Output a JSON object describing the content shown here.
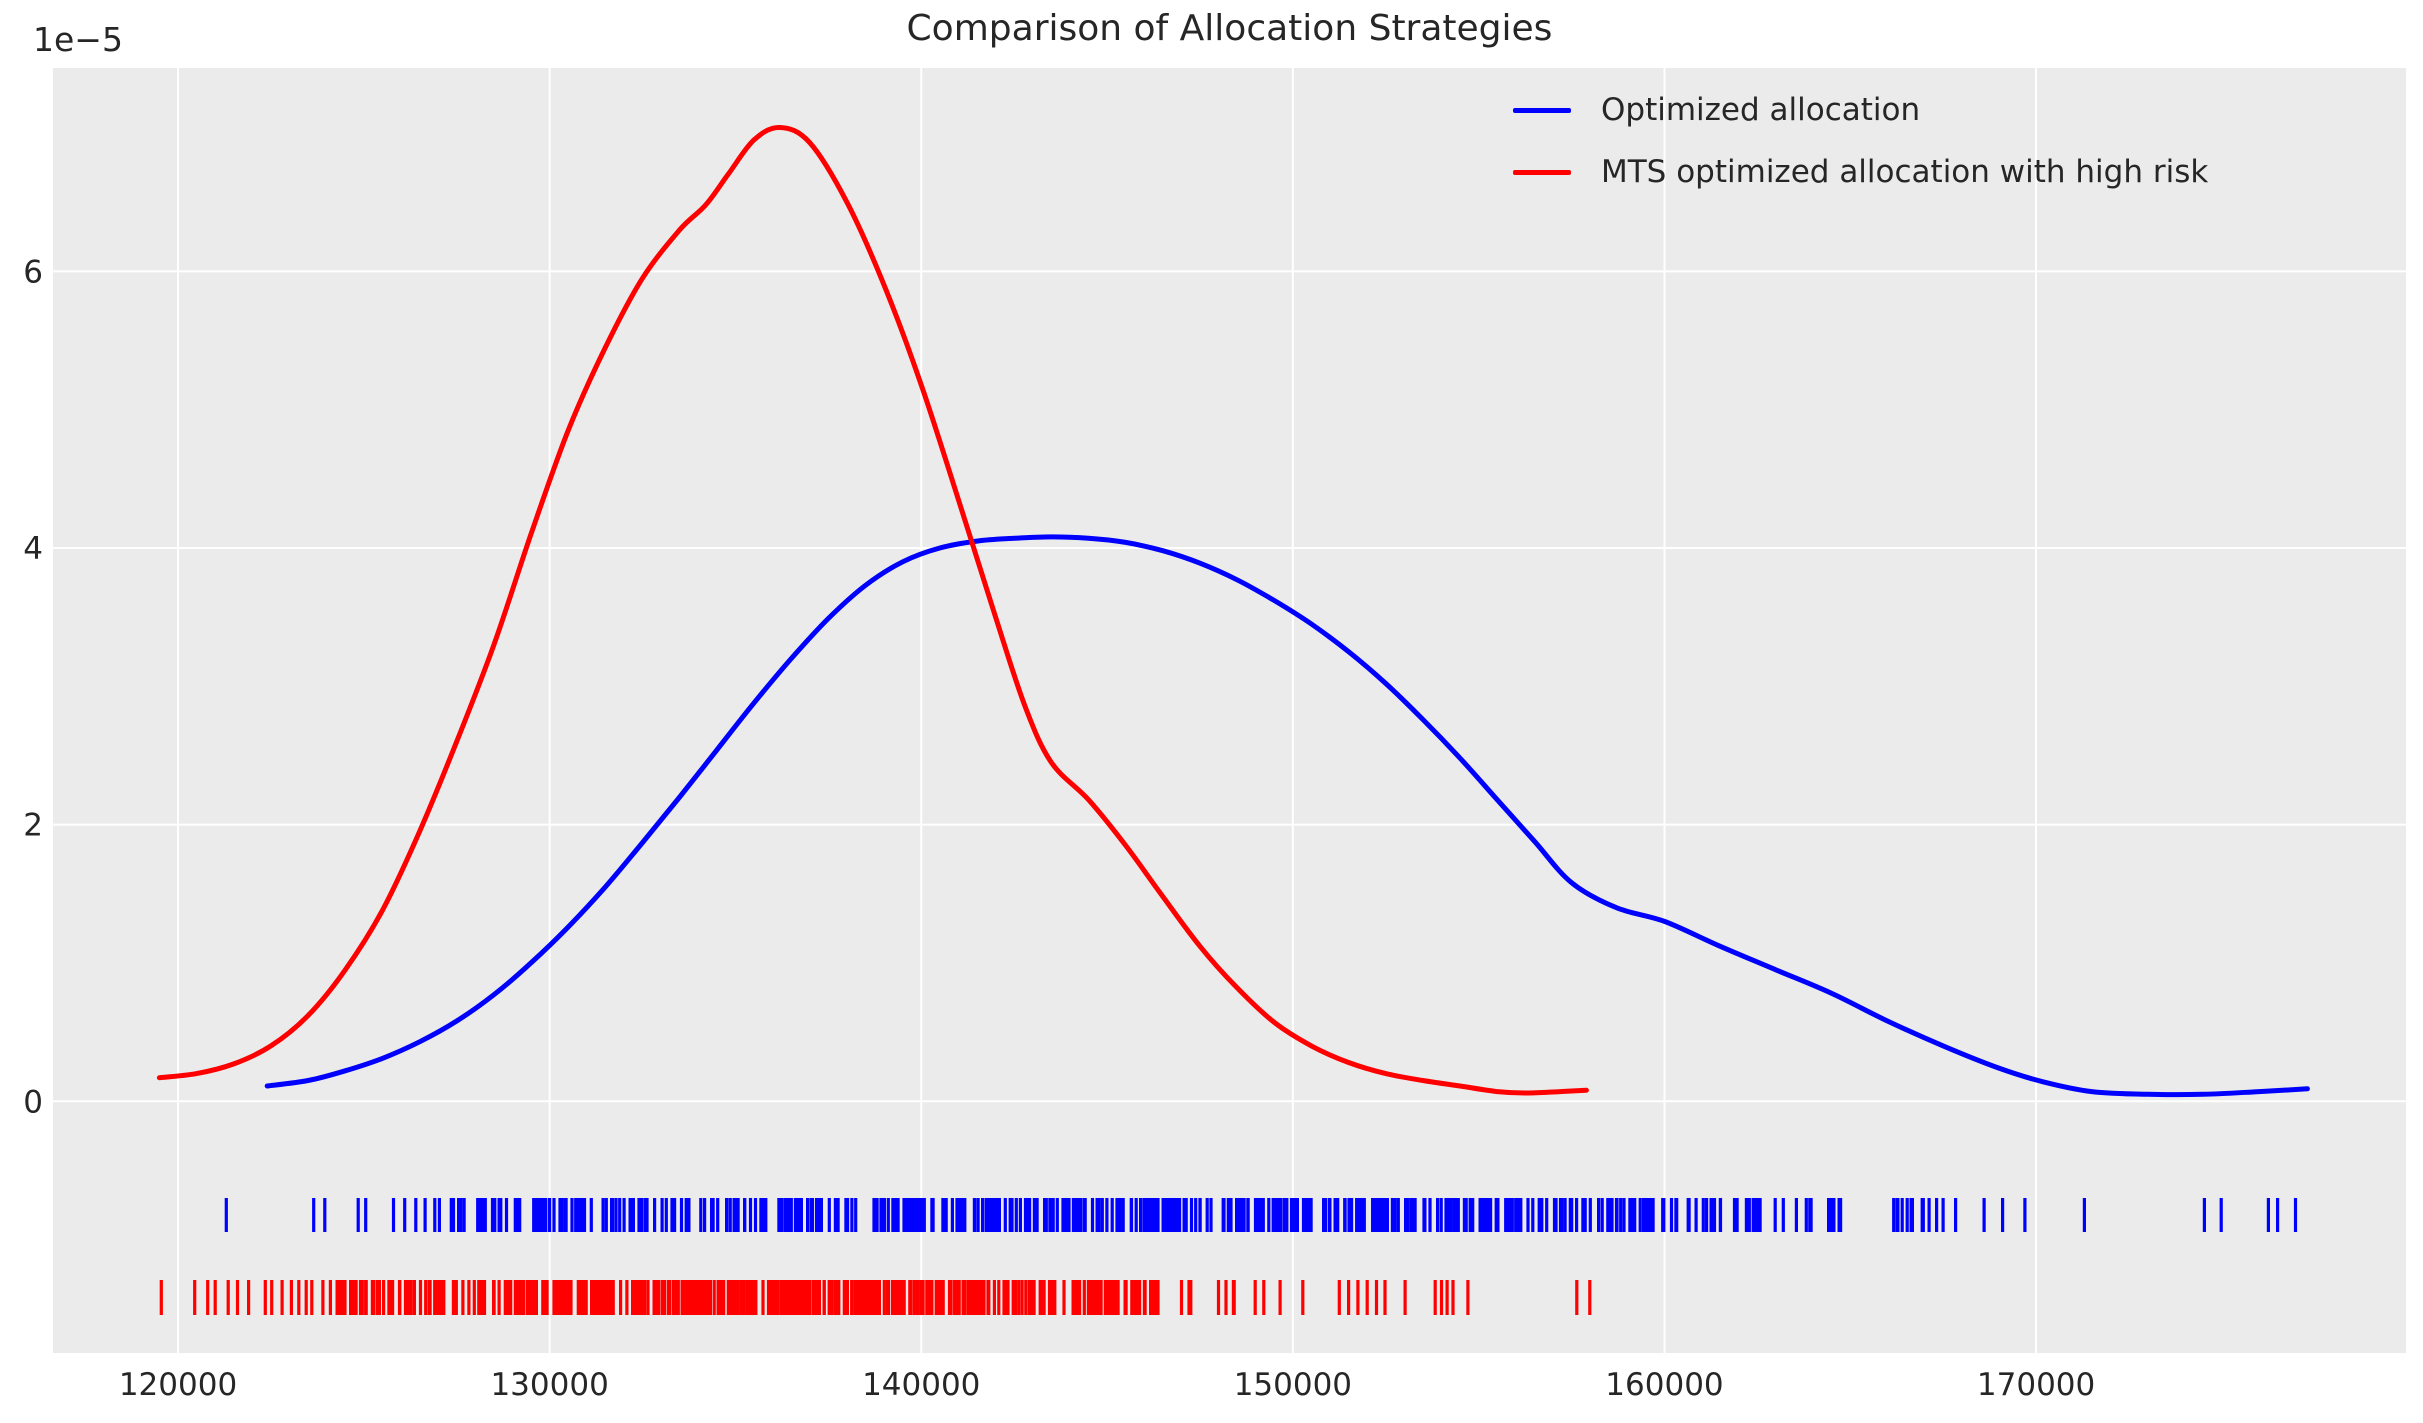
{
  "title": "Comparison of Allocation Strategies",
  "offset_label": "1e−5",
  "colors": {
    "background": "#ebebeb",
    "grid": "#ffffff",
    "text": "#262626",
    "blue": "#0000ff",
    "red": "#ff0000"
  },
  "legend": {
    "items": [
      {
        "label": "Optimized allocation",
        "color": "#0000ff"
      },
      {
        "label": "MTS optimized allocation with high risk",
        "color": "#ff0000"
      }
    ]
  },
  "chart_data": {
    "type": "line",
    "title": "Comparison of Allocation Strategies",
    "xlabel": "",
    "ylabel": "",
    "y_offset_text": "1e−5",
    "grid": true,
    "legend_position": "upper right",
    "xlim": [
      116636,
      179954
    ],
    "ylim_1e5": [
      -1.82,
      7.47
    ],
    "x_ticks": [
      120000,
      130000,
      140000,
      150000,
      160000,
      170000
    ],
    "x_tick_labels": [
      "120000",
      "130000",
      "140000",
      "150000",
      "160000",
      "170000"
    ],
    "y_ticks_1e5": [
      0,
      2,
      4,
      6
    ],
    "y_tick_labels": [
      "0",
      "2",
      "4",
      "6"
    ],
    "series": [
      {
        "name": "Optimized allocation",
        "color": "#0000ff",
        "peak": {
          "x": 143500,
          "y_1e5": 4.08
        },
        "points": [
          [
            122400,
            0.11
          ],
          [
            123500,
            0.15
          ],
          [
            124500,
            0.22
          ],
          [
            125500,
            0.31
          ],
          [
            126500,
            0.43
          ],
          [
            127500,
            0.58
          ],
          [
            128500,
            0.77
          ],
          [
            129500,
            1.0
          ],
          [
            130500,
            1.26
          ],
          [
            131500,
            1.55
          ],
          [
            132500,
            1.87
          ],
          [
            133500,
            2.2
          ],
          [
            134500,
            2.54
          ],
          [
            135500,
            2.88
          ],
          [
            136500,
            3.2
          ],
          [
            137500,
            3.49
          ],
          [
            138500,
            3.73
          ],
          [
            139500,
            3.9
          ],
          [
            140500,
            4.0
          ],
          [
            141500,
            4.05
          ],
          [
            142500,
            4.07
          ],
          [
            143500,
            4.08
          ],
          [
            144500,
            4.07
          ],
          [
            145500,
            4.04
          ],
          [
            146500,
            3.98
          ],
          [
            147500,
            3.89
          ],
          [
            148500,
            3.77
          ],
          [
            149500,
            3.62
          ],
          [
            150500,
            3.45
          ],
          [
            151500,
            3.25
          ],
          [
            152500,
            3.02
          ],
          [
            153500,
            2.76
          ],
          [
            154500,
            2.48
          ],
          [
            155500,
            2.18
          ],
          [
            156500,
            1.88
          ],
          [
            157500,
            1.58
          ],
          [
            158700,
            1.4
          ],
          [
            160000,
            1.3
          ],
          [
            161500,
            1.12
          ],
          [
            163000,
            0.95
          ],
          [
            164500,
            0.78
          ],
          [
            166000,
            0.58
          ],
          [
            167500,
            0.4
          ],
          [
            169000,
            0.24
          ],
          [
            170200,
            0.14
          ],
          [
            171500,
            0.07
          ],
          [
            173000,
            0.05
          ],
          [
            174500,
            0.05
          ],
          [
            176000,
            0.07
          ],
          [
            177300,
            0.09
          ]
        ]
      },
      {
        "name": "MTS optimized allocation with high risk",
        "color": "#ff0000",
        "peak": {
          "x": 136200,
          "y_1e5": 7.04
        },
        "points": [
          [
            119500,
            0.17
          ],
          [
            120500,
            0.2
          ],
          [
            121500,
            0.27
          ],
          [
            122500,
            0.4
          ],
          [
            123500,
            0.62
          ],
          [
            124500,
            0.95
          ],
          [
            125500,
            1.38
          ],
          [
            126500,
            1.95
          ],
          [
            127500,
            2.6
          ],
          [
            128500,
            3.3
          ],
          [
            129500,
            4.1
          ],
          [
            130500,
            4.85
          ],
          [
            131500,
            5.45
          ],
          [
            132500,
            5.95
          ],
          [
            133500,
            6.3
          ],
          [
            134200,
            6.48
          ],
          [
            134800,
            6.7
          ],
          [
            135500,
            6.95
          ],
          [
            136200,
            7.04
          ],
          [
            137000,
            6.93
          ],
          [
            138000,
            6.5
          ],
          [
            139000,
            5.9
          ],
          [
            140000,
            5.18
          ],
          [
            141000,
            4.35
          ],
          [
            142000,
            3.5
          ],
          [
            142800,
            2.85
          ],
          [
            143500,
            2.45
          ],
          [
            144500,
            2.18
          ],
          [
            145500,
            1.85
          ],
          [
            146500,
            1.48
          ],
          [
            147500,
            1.12
          ],
          [
            148500,
            0.82
          ],
          [
            149500,
            0.57
          ],
          [
            150500,
            0.4
          ],
          [
            151500,
            0.28
          ],
          [
            152500,
            0.2
          ],
          [
            153500,
            0.15
          ],
          [
            154500,
            0.11
          ],
          [
            155500,
            0.07
          ],
          [
            156300,
            0.06
          ],
          [
            157200,
            0.07
          ],
          [
            157900,
            0.08
          ]
        ]
      }
    ],
    "rugs": [
      {
        "name": "Optimized allocation samples",
        "color": "#0000ff",
        "seed": 42,
        "sparse": [
          121300,
          123650,
          123950,
          124850,
          125050,
          125800,
          126100,
          126400,
          126650,
          168600,
          169100,
          169700,
          171300,
          174530,
          174980,
          176250,
          176500,
          176980
        ],
        "bands": [
          [
            126900,
            129500,
            22
          ],
          [
            129500,
            134000,
            45
          ],
          [
            134000,
            152000,
            250
          ],
          [
            152000,
            156500,
            70
          ],
          [
            156500,
            160500,
            45
          ],
          [
            160500,
            164500,
            30
          ],
          [
            164500,
            168200,
            16
          ]
        ]
      },
      {
        "name": "MTS optimized allocation samples",
        "color": "#ff0000",
        "seed": 7,
        "sparse": [
          119550,
          120450,
          120800,
          121000,
          121350,
          121600,
          121900,
          122350,
          122520,
          122800,
          123050,
          123250,
          123450,
          123600,
          123900,
          124100,
          151250,
          151500,
          151750,
          152000,
          152250,
          152480,
          153020,
          153830,
          154000,
          154150,
          154310,
          154710,
          157640,
          157990
        ],
        "bands": [
          [
            124250,
            127000,
            45
          ],
          [
            127000,
            130500,
            65
          ],
          [
            130500,
            141800,
            280
          ],
          [
            141800,
            146300,
            70
          ],
          [
            146300,
            150900,
            14
          ]
        ]
      }
    ]
  }
}
